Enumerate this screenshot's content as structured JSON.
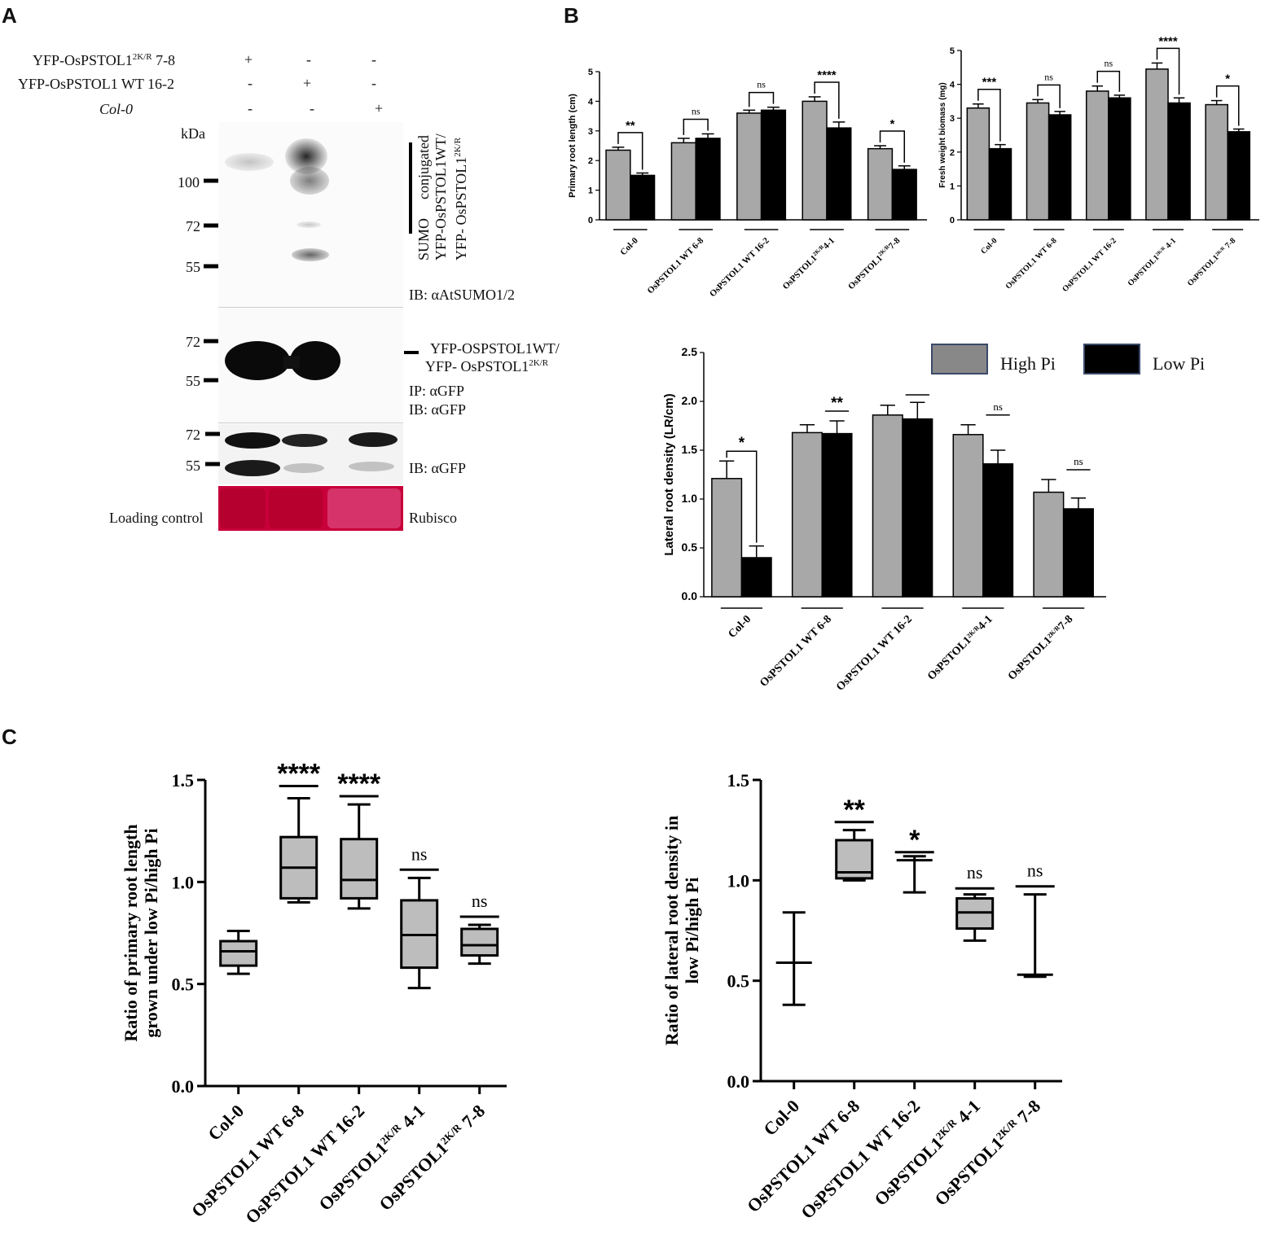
{
  "panels": {
    "a": "A",
    "b": "B",
    "c": "C"
  },
  "blot": {
    "rows": [
      {
        "label": "YFP-OsPSTOL1",
        "label_sup": "2K/R",
        "label_suffix": " 7-8",
        "marks": [
          "+",
          "-",
          "-"
        ]
      },
      {
        "label": "YFP-OsPSTOL1 WT 16-2",
        "label_sup": "",
        "label_suffix": "",
        "marks": [
          "-",
          "+",
          "-"
        ]
      },
      {
        "label": "Col-0",
        "label_sup": "",
        "label_suffix": "",
        "marks": [
          "-",
          "-",
          "+"
        ]
      }
    ],
    "kda": "kDa",
    "markers_top": [
      "100",
      "72",
      "55"
    ],
    "sumo_text": [
      "SUMO",
      "conjugated",
      "YFP-OsPSTOL1WT/",
      "YFP- OsPSTOL1"
    ],
    "sumo_sup": "2K/R",
    "ib_sumo": "IB: αAtSUMO1/2",
    "markers_mid": [
      "72",
      "55"
    ],
    "yfp_label_1": "YFP-OSPSTOL1WT/",
    "yfp_label_2": "YFP- OsPSTOL1",
    "yfp_sup": "2K/R",
    "ip_label": "IP: αGFP",
    "ib_gfp_mid": "IB: αGFP",
    "markers_bot": [
      "72",
      "55"
    ],
    "ib_gfp_bot": "IB: αGFP",
    "loading_label": "Loading control",
    "rubisco_label": "Rubisco",
    "colors": {
      "rubisco": "#c8003a",
      "band": "#0a0a0a"
    }
  },
  "legend": {
    "high": "High Pi",
    "low": "Low Pi",
    "colors": {
      "high": "#a8a8a8",
      "low": "#000000"
    }
  },
  "chart_data": [
    {
      "id": "b1",
      "type": "bar",
      "ylabel": "Primary root length (cm)",
      "ylim": [
        0,
        5
      ],
      "yticks": [
        "0",
        "1",
        "2",
        "3",
        "4",
        "5"
      ],
      "categories": [
        {
          "main": "Col-0",
          "sup": "",
          "tail": ""
        },
        {
          "main": "OsPSTOL1 WT 6-8",
          "sup": "",
          "tail": ""
        },
        {
          "main": "OsPSTOL1 WT 16-2",
          "sup": "",
          "tail": ""
        },
        {
          "main": "OsPSTOL1",
          "sup": "2K/R",
          "tail": "4-1"
        },
        {
          "main": "OsPSTOL1",
          "sup": "2K/R",
          "tail": "7-8"
        }
      ],
      "series": [
        {
          "name": "High Pi",
          "values": [
            2.35,
            2.6,
            3.6,
            4.0,
            2.4
          ],
          "errors": [
            0.1,
            0.15,
            0.1,
            0.15,
            0.1
          ]
        },
        {
          "name": "Low Pi",
          "values": [
            1.5,
            2.75,
            3.7,
            3.1,
            1.7
          ],
          "errors": [
            0.08,
            0.15,
            0.1,
            0.2,
            0.12
          ]
        }
      ],
      "sig": [
        "**",
        "ns",
        "ns",
        "****",
        "*"
      ]
    },
    {
      "id": "b2",
      "type": "bar",
      "ylabel": "Fresh weight biomass (mg)",
      "ylim": [
        0,
        5
      ],
      "yticks": [
        "0",
        "1",
        "2",
        "3",
        "4",
        "5"
      ],
      "categories": [
        {
          "main": "Col-0",
          "sup": "",
          "tail": ""
        },
        {
          "main": "OsPSTOL1 WT 6-8",
          "sup": "",
          "tail": ""
        },
        {
          "main": "OsPSTOL1 WT 16-2",
          "sup": "",
          "tail": ""
        },
        {
          "main": "OsPSTOL1",
          "sup": "2K/R",
          "tail": " 4-1"
        },
        {
          "main": "OsPSTOL1",
          "sup": "2K/R",
          "tail": " 7-8"
        }
      ],
      "series": [
        {
          "name": "High Pi",
          "values": [
            3.3,
            3.45,
            3.8,
            4.45,
            3.4
          ],
          "errors": [
            0.12,
            0.1,
            0.15,
            0.18,
            0.12
          ]
        },
        {
          "name": "Low Pi",
          "values": [
            2.1,
            3.1,
            3.6,
            3.45,
            2.6
          ],
          "errors": [
            0.12,
            0.1,
            0.08,
            0.15,
            0.08
          ]
        }
      ],
      "sig": [
        "***",
        "ns",
        "ns",
        "****",
        "*"
      ]
    },
    {
      "id": "b3",
      "type": "bar",
      "ylabel": "Lateral root density (LR/cm)",
      "ylim": [
        0,
        2.5
      ],
      "yticks": [
        "0.0",
        "0.5",
        "1.0",
        "1.5",
        "2.0",
        "2.5"
      ],
      "categories": [
        {
          "main": "Col-0",
          "sup": "",
          "tail": ""
        },
        {
          "main": "OsPSTOL1 WT 6-8",
          "sup": "",
          "tail": ""
        },
        {
          "main": "OsPSTOL1 WT 16-2",
          "sup": "",
          "tail": ""
        },
        {
          "main": "OsPSTOL1",
          "sup": "2K/R",
          "tail": "4-1"
        },
        {
          "main": "OsPSTOL1",
          "sup": "2K/R",
          "tail": "7-8"
        }
      ],
      "series": [
        {
          "name": "High Pi",
          "values": [
            1.21,
            1.68,
            1.86,
            1.66,
            1.07
          ],
          "errors": [
            0.18,
            0.08,
            0.1,
            0.1,
            0.13
          ]
        },
        {
          "name": "Low Pi",
          "values": [
            0.4,
            1.67,
            1.82,
            1.36,
            0.9
          ],
          "errors": [
            0.12,
            0.13,
            0.17,
            0.14,
            0.11
          ]
        }
      ],
      "sig": [
        "*",
        "**",
        "",
        "ns",
        "ns"
      ]
    },
    {
      "id": "c1",
      "type": "box",
      "ylabel": "Ratio of primary root length grown under low Pi/high Pi",
      "ylim": [
        0,
        1.5
      ],
      "yticks": [
        "0.0",
        "0.5",
        "1.0",
        "1.5"
      ],
      "categories": [
        {
          "main": "Col-0",
          "sup": "",
          "tail": ""
        },
        {
          "main": "OsPSTOL1 WT 6-8",
          "sup": "",
          "tail": ""
        },
        {
          "main": "OsPSTOL1 WT 16-2",
          "sup": "",
          "tail": ""
        },
        {
          "main": "OsPSTOL1",
          "sup": "2K/R",
          "tail": " 4-1"
        },
        {
          "main": "OsPSTOL1",
          "sup": "2K/R",
          "tail": " 7-8"
        }
      ],
      "boxes": [
        {
          "min": 0.55,
          "q1": 0.59,
          "median": 0.66,
          "q3": 0.71,
          "max": 0.76
        },
        {
          "min": 0.9,
          "q1": 0.92,
          "median": 1.07,
          "q3": 1.22,
          "max": 1.41
        },
        {
          "min": 0.87,
          "q1": 0.92,
          "median": 1.01,
          "q3": 1.21,
          "max": 1.38
        },
        {
          "min": 0.48,
          "q1": 0.58,
          "median": 0.74,
          "q3": 0.91,
          "max": 1.02
        },
        {
          "min": 0.6,
          "q1": 0.64,
          "median": 0.69,
          "q3": 0.77,
          "max": 0.79
        }
      ],
      "sig": [
        "",
        "****",
        "****",
        "ns",
        "ns"
      ],
      "sig_lines": [
        null,
        1.47,
        1.42,
        1.06,
        0.83
      ]
    },
    {
      "id": "c2",
      "type": "box",
      "ylabel": "Ratio of lateral root density in low Pi/high Pi",
      "ylim": [
        0,
        1.5
      ],
      "yticks": [
        "0.0",
        "0.5",
        "1.0",
        "1.5"
      ],
      "categories": [
        {
          "main": "Col-0",
          "sup": "",
          "tail": ""
        },
        {
          "main": "OsPSTOL1 WT 6-8",
          "sup": "",
          "tail": ""
        },
        {
          "main": "OsPSTOL1 WT 16-2",
          "sup": "",
          "tail": ""
        },
        {
          "main": "OsPSTOL1",
          "sup": "2K/R",
          "tail": " 4-1"
        },
        {
          "main": "OsPSTOL1",
          "sup": "2K/R",
          "tail": " 7-8"
        }
      ],
      "boxes": [
        {
          "min": 0.38,
          "q1": 0.59,
          "median": 0.59,
          "q3": 0.59,
          "max": 0.84
        },
        {
          "min": 1.0,
          "q1": 1.01,
          "median": 1.04,
          "q3": 1.2,
          "max": 1.25
        },
        {
          "min": 0.94,
          "q1": 1.1,
          "median": 1.1,
          "q3": 1.1,
          "max": 1.12
        },
        {
          "min": 0.7,
          "q1": 0.76,
          "median": 0.84,
          "q3": 0.91,
          "max": 0.93
        },
        {
          "min": 0.52,
          "q1": 0.53,
          "median": 0.53,
          "q3": 0.53,
          "max": 0.93
        }
      ],
      "sig": [
        "",
        "**",
        "*",
        "ns",
        "ns"
      ],
      "sig_lines": [
        null,
        1.29,
        1.14,
        0.96,
        0.97
      ]
    }
  ]
}
